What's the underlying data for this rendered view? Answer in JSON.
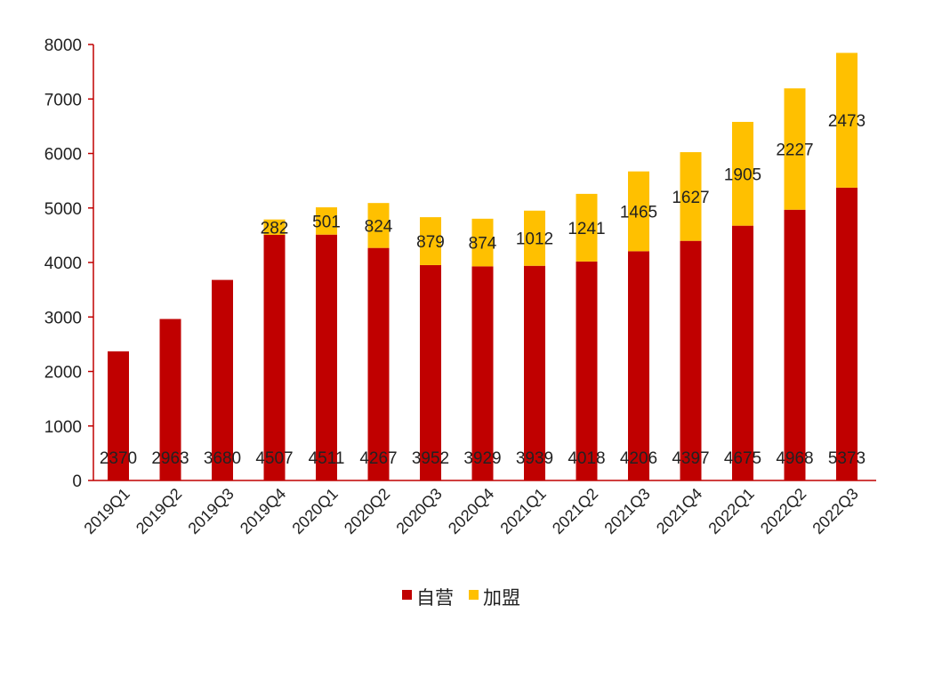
{
  "chart_data": {
    "type": "bar",
    "stacked": true,
    "categories": [
      "2019Q1",
      "2019Q2",
      "2019Q3",
      "2019Q4",
      "2020Q1",
      "2020Q2",
      "2020Q3",
      "2020Q4",
      "2021Q1",
      "2021Q2",
      "2021Q3",
      "2021Q4",
      "2022Q1",
      "2022Q2",
      "2022Q3"
    ],
    "series": [
      {
        "name": "自营",
        "color": "#C00000",
        "values": [
          2370,
          2963,
          3680,
          4507,
          4511,
          4267,
          3952,
          3929,
          3939,
          4018,
          4206,
          4397,
          4675,
          4968,
          5373
        ]
      },
      {
        "name": "加盟",
        "color": "#FFC000",
        "values": [
          null,
          null,
          null,
          282,
          501,
          824,
          879,
          874,
          1012,
          1241,
          1465,
          1627,
          1905,
          2227,
          2473
        ]
      }
    ],
    "ylim": [
      0,
      8000
    ],
    "yticks": [
      0,
      1000,
      2000,
      3000,
      4000,
      5000,
      6000,
      7000,
      8000
    ],
    "axis_color": "#C00000",
    "grid": false,
    "legend_position": "bottom-center",
    "title": "",
    "xlabel": "",
    "ylabel": ""
  }
}
